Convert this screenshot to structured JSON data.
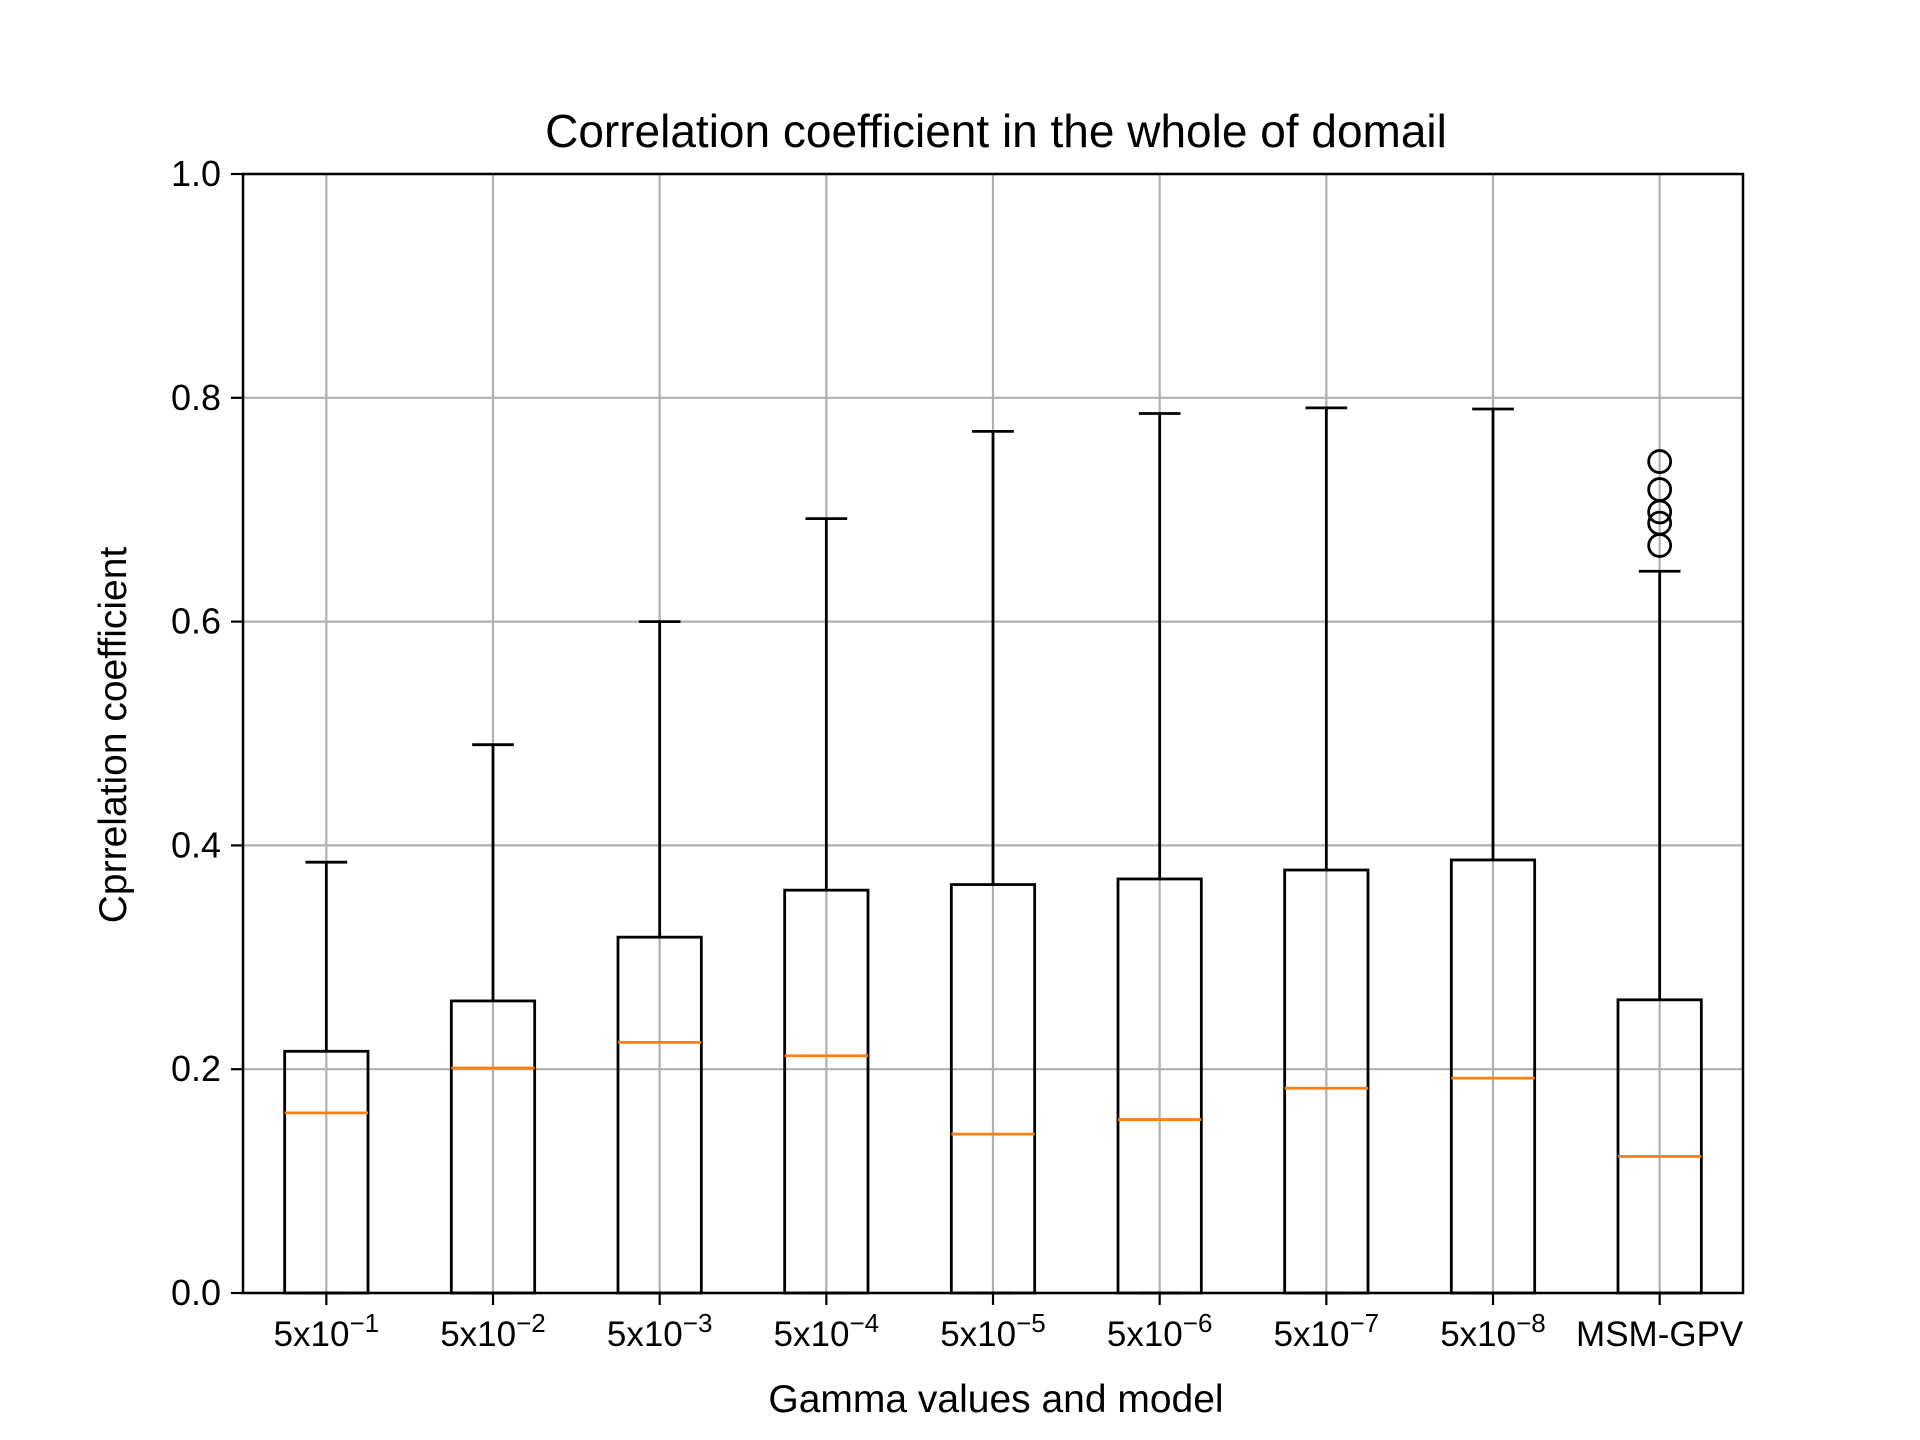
{
  "chart_data": {
    "type": "boxplot",
    "title": "Correlation coefficient in the whole of domail",
    "xlabel": "Gamma values and model",
    "ylabel": "Cprrelation coefficient",
    "ylim": [
      0.0,
      1.0
    ],
    "yticks": [
      "0.0",
      "0.2",
      "0.4",
      "0.6",
      "0.8",
      "1.0"
    ],
    "yticks_values": [
      0.0,
      0.2,
      0.4,
      0.6,
      0.8,
      1.0
    ],
    "grid": true,
    "categories": [
      {
        "base": "5x10",
        "exp": "−1"
      },
      {
        "base": "5x10",
        "exp": "−2"
      },
      {
        "base": "5x10",
        "exp": "−3"
      },
      {
        "base": "5x10",
        "exp": "−4"
      },
      {
        "base": "5x10",
        "exp": "−5"
      },
      {
        "base": "5x10",
        "exp": "−6"
      },
      {
        "base": "5x10",
        "exp": "−7"
      },
      {
        "base": "5x10",
        "exp": "−8"
      },
      {
        "base": "MSM-GPV",
        "exp": ""
      }
    ],
    "boxes": [
      {
        "whisker_low": 0.0,
        "q1": 0.0,
        "median": 0.161,
        "q3": 0.216,
        "whisker_high": 0.385,
        "fliers": []
      },
      {
        "whisker_low": 0.0,
        "q1": 0.0,
        "median": 0.201,
        "q3": 0.261,
        "whisker_high": 0.49,
        "fliers": []
      },
      {
        "whisker_low": 0.0,
        "q1": 0.0,
        "median": 0.224,
        "q3": 0.318,
        "whisker_high": 0.6,
        "fliers": []
      },
      {
        "whisker_low": 0.0,
        "q1": 0.0,
        "median": 0.212,
        "q3": 0.36,
        "whisker_high": 0.692,
        "fliers": []
      },
      {
        "whisker_low": 0.0,
        "q1": 0.0,
        "median": 0.142,
        "q3": 0.365,
        "whisker_high": 0.77,
        "fliers": []
      },
      {
        "whisker_low": 0.0,
        "q1": 0.0,
        "median": 0.155,
        "q3": 0.37,
        "whisker_high": 0.786,
        "fliers": []
      },
      {
        "whisker_low": 0.0,
        "q1": 0.0,
        "median": 0.183,
        "q3": 0.378,
        "whisker_high": 0.791,
        "fliers": []
      },
      {
        "whisker_low": 0.0,
        "q1": 0.0,
        "median": 0.192,
        "q3": 0.387,
        "whisker_high": 0.79,
        "fliers": []
      },
      {
        "whisker_low": 0.0,
        "q1": 0.0,
        "median": 0.122,
        "q3": 0.262,
        "whisker_high": 0.645,
        "fliers": [
          0.743,
          0.718,
          0.698,
          0.688,
          0.668
        ]
      }
    ],
    "colors": {
      "box": "#000000",
      "median": "#ff7f0e",
      "grid": "#b0b0b0",
      "flier": "#000000"
    }
  }
}
